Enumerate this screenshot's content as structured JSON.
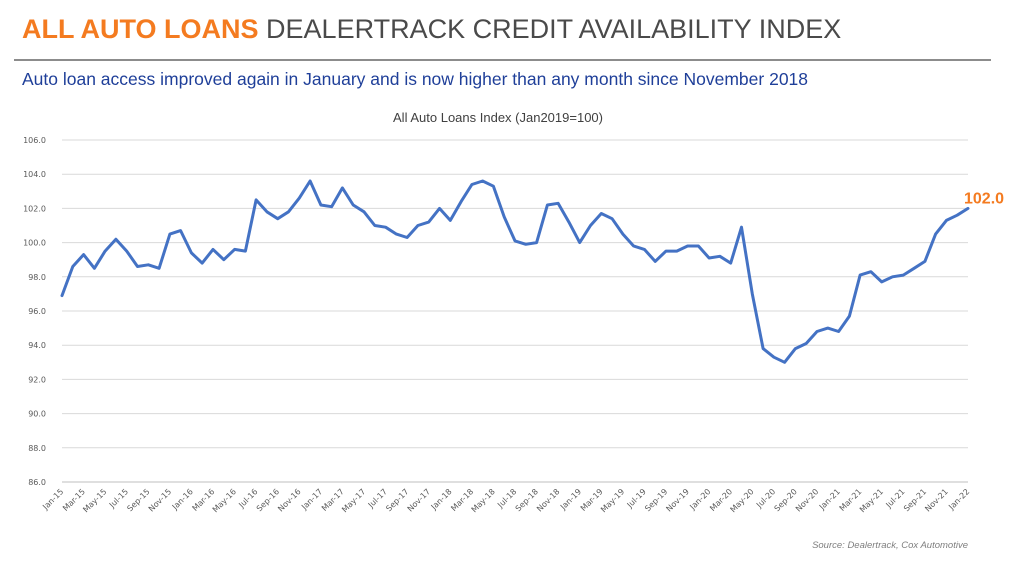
{
  "slide": {
    "title_accent": "ALL AUTO LOANS",
    "title_rest": "DEALERTRACK CREDIT AVAILABILITY INDEX",
    "subtitle": "Auto loan access improved again in January and is now higher than any month since November 2018",
    "source": "Source: Dealertrack, Cox Automotive"
  },
  "colors": {
    "accent": "#f47b20",
    "line": "#4472c4",
    "subtitle": "#1f3f99",
    "grid": "#d9d9d9"
  },
  "chart_data": {
    "type": "line",
    "title": "All Auto Loans Index (Jan2019=100)",
    "ylim": [
      86,
      106
    ],
    "yticks": [
      "86.0",
      "88.0",
      "90.0",
      "92.0",
      "94.0",
      "96.0",
      "98.0",
      "100.0",
      "102.0",
      "104.0",
      "106.0"
    ],
    "grid": "horizontal",
    "x_tick_labels": [
      "Jan-15",
      "Mar-15",
      "May-15",
      "Jul-15",
      "Sep-15",
      "Nov-15",
      "Jan-16",
      "Mar-16",
      "May-16",
      "Jul-16",
      "Sep-16",
      "Nov-16",
      "Jan-17",
      "Mar-17",
      "May-17",
      "Jul-17",
      "Sep-17",
      "Nov-17",
      "Jan-18",
      "Mar-18",
      "May-18",
      "Jul-18",
      "Sep-18",
      "Nov-18",
      "Jan-19",
      "Mar-19",
      "May-19",
      "Jul-19",
      "Sep-19",
      "Nov-19",
      "Jan-20",
      "Mar-20",
      "May-20",
      "Jul-20",
      "Sep-20",
      "Nov-20",
      "Jan-21",
      "Mar-21",
      "May-21",
      "Jul-21",
      "Sep-21",
      "Nov-21",
      "Jan-22"
    ],
    "x_start": "Jan-15",
    "series": [
      {
        "values": [
          96.9,
          98.6,
          99.3,
          98.5,
          99.5,
          100.2,
          99.5,
          98.6,
          98.7,
          98.5,
          100.5,
          100.7,
          99.4,
          98.8,
          99.6,
          99.0,
          99.6,
          99.5,
          102.5,
          101.8,
          101.4,
          101.8,
          102.6,
          103.6,
          102.2,
          102.1,
          103.2,
          102.2,
          101.8,
          101.0,
          100.9,
          100.5,
          100.3,
          101.0,
          101.2,
          102.0,
          101.3,
          102.4,
          103.4,
          103.6,
          103.3,
          101.5,
          100.1,
          99.9,
          100.0,
          102.2,
          102.3,
          101.2,
          100.0,
          101.0,
          101.7,
          101.4,
          100.5,
          99.8,
          99.6,
          98.9,
          99.5,
          99.5,
          99.8,
          99.8,
          99.1,
          99.2,
          98.8,
          100.9,
          97.0,
          93.8,
          93.3,
          93.0,
          93.8,
          94.1,
          94.8,
          95.0,
          94.8,
          95.7,
          98.1,
          98.3,
          97.7,
          98.0,
          98.1,
          98.5,
          98.9,
          100.5,
          101.3,
          101.6,
          102.0
        ]
      }
    ],
    "end_label": "102.0"
  }
}
